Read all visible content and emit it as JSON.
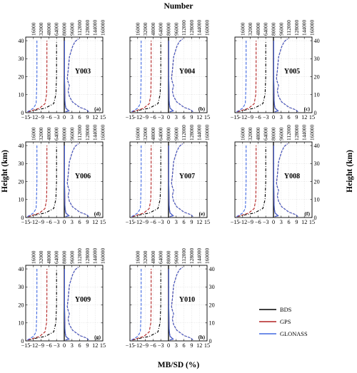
{
  "figure": {
    "top_label": "Number",
    "bottom_label": "MB/SD (%)",
    "y_label": "Height (km)"
  },
  "legend": {
    "entries": [
      {
        "name": "BDS",
        "color": "#000000"
      },
      {
        "name": "GPS",
        "color": "#b22222"
      },
      {
        "name": "GLONASS",
        "color": "#4169e1"
      }
    ]
  },
  "axes": {
    "x_ticks": [
      "-15",
      "-12",
      "-9",
      "-6",
      "-3",
      "0",
      "3",
      "6",
      "9",
      "12",
      "15"
    ],
    "top_ticks": [
      "16000",
      "32000",
      "48000",
      "64000",
      "80000",
      "96000",
      "112000",
      "128000",
      "144000",
      "160000"
    ],
    "y_ticks": [
      "0",
      "10",
      "20",
      "30",
      "40"
    ]
  },
  "chart_data": {
    "type": "line",
    "x_range": [
      -15,
      15
    ],
    "y_range": [
      0,
      42
    ],
    "top_axis_range": [
      0,
      160000
    ],
    "grid": true,
    "legend_position": "bottom-right",
    "panels": [
      {
        "station": "Y003",
        "letter": "(a)"
      },
      {
        "station": "Y004",
        "letter": "(b)"
      },
      {
        "station": "Y005",
        "letter": "(c)"
      },
      {
        "station": "Y006",
        "letter": "(d)"
      },
      {
        "station": "Y007",
        "letter": "(e)"
      },
      {
        "station": "Y008",
        "letter": "(f)"
      },
      {
        "station": "Y009",
        "letter": "(g)"
      },
      {
        "station": "Y010",
        "letter": "(h)"
      }
    ],
    "series": [
      {
        "name": "BDS",
        "mb_profile": [
          [
            0.5,
            0.5
          ],
          [
            1.8,
            1.0
          ],
          [
            0.6,
            2.5
          ],
          [
            0.3,
            5
          ],
          [
            0.2,
            10
          ],
          [
            0.1,
            20
          ],
          [
            0.1,
            30
          ],
          [
            0.1,
            40
          ]
        ],
        "sd_profile": [
          [
            9.5,
            0.5
          ],
          [
            8.8,
            1.5
          ],
          [
            6.0,
            3
          ],
          [
            3.2,
            6
          ],
          [
            2.0,
            9
          ],
          [
            1.5,
            12
          ],
          [
            1.6,
            13
          ],
          [
            2.0,
            15
          ],
          [
            1.5,
            17
          ],
          [
            1.2,
            19
          ],
          [
            1.3,
            21
          ],
          [
            1.5,
            23
          ],
          [
            1.6,
            25
          ],
          [
            1.8,
            28
          ],
          [
            2.0,
            31
          ],
          [
            2.6,
            34
          ],
          [
            3.3,
            37
          ],
          [
            4.2,
            39.5
          ],
          [
            5.5,
            41
          ]
        ],
        "number_profile": [
          [
            5600,
            0.5
          ],
          [
            16000,
            1.2
          ],
          [
            40000,
            2.5
          ],
          [
            58000,
            5
          ],
          [
            62500,
            10
          ],
          [
            64000,
            20
          ],
          [
            64000,
            30
          ],
          [
            64000,
            40
          ]
        ]
      },
      {
        "name": "GPS",
        "mb_profile": [
          [
            0.5,
            0.5
          ],
          [
            1.8,
            1.0
          ],
          [
            0.6,
            2.5
          ],
          [
            0.3,
            5
          ],
          [
            0.2,
            10
          ],
          [
            0.1,
            20
          ],
          [
            0.1,
            30
          ],
          [
            0.1,
            40
          ]
        ],
        "sd_profile": [
          [
            9.5,
            0.5
          ],
          [
            8.8,
            1.5
          ],
          [
            6.0,
            3
          ],
          [
            3.2,
            6
          ],
          [
            2.0,
            9
          ],
          [
            1.5,
            12
          ],
          [
            1.6,
            13
          ],
          [
            2.0,
            15
          ],
          [
            1.5,
            17
          ],
          [
            1.2,
            19
          ],
          [
            1.3,
            21
          ],
          [
            1.5,
            23
          ],
          [
            1.6,
            25
          ],
          [
            1.8,
            28
          ],
          [
            2.0,
            31
          ],
          [
            2.6,
            34
          ],
          [
            3.3,
            37
          ],
          [
            4.2,
            39.5
          ],
          [
            5.5,
            41
          ]
        ],
        "number_profile": [
          [
            4800,
            0.5
          ],
          [
            12800,
            1.2
          ],
          [
            28800,
            2.5
          ],
          [
            40000,
            5
          ],
          [
            43200,
            10
          ],
          [
            44000,
            20
          ],
          [
            44000,
            30
          ],
          [
            44000,
            40
          ]
        ]
      },
      {
        "name": "GLONASS",
        "mb_profile": [
          [
            0.5,
            0.5
          ],
          [
            1.8,
            1.0
          ],
          [
            0.6,
            2.5
          ],
          [
            0.3,
            5
          ],
          [
            0.2,
            10
          ],
          [
            0.1,
            20
          ],
          [
            0.1,
            30
          ],
          [
            0.1,
            40
          ]
        ],
        "sd_profile": [
          [
            9.5,
            0.5
          ],
          [
            8.8,
            1.5
          ],
          [
            6.0,
            3
          ],
          [
            3.2,
            6
          ],
          [
            2.0,
            9
          ],
          [
            1.5,
            12
          ],
          [
            1.6,
            13
          ],
          [
            2.0,
            15
          ],
          [
            1.5,
            17
          ],
          [
            1.2,
            19
          ],
          [
            1.3,
            21
          ],
          [
            1.5,
            23
          ],
          [
            1.6,
            25
          ],
          [
            1.8,
            28
          ],
          [
            2.0,
            31
          ],
          [
            2.6,
            34
          ],
          [
            3.3,
            37
          ],
          [
            4.2,
            39.5
          ],
          [
            5.5,
            41
          ]
        ],
        "number_profile": [
          [
            3200,
            0.5
          ],
          [
            8000,
            1.2
          ],
          [
            16000,
            2.5
          ],
          [
            21600,
            5
          ],
          [
            22400,
            10
          ],
          [
            23200,
            20
          ],
          [
            23200,
            30
          ],
          [
            23200,
            40
          ]
        ]
      }
    ]
  }
}
